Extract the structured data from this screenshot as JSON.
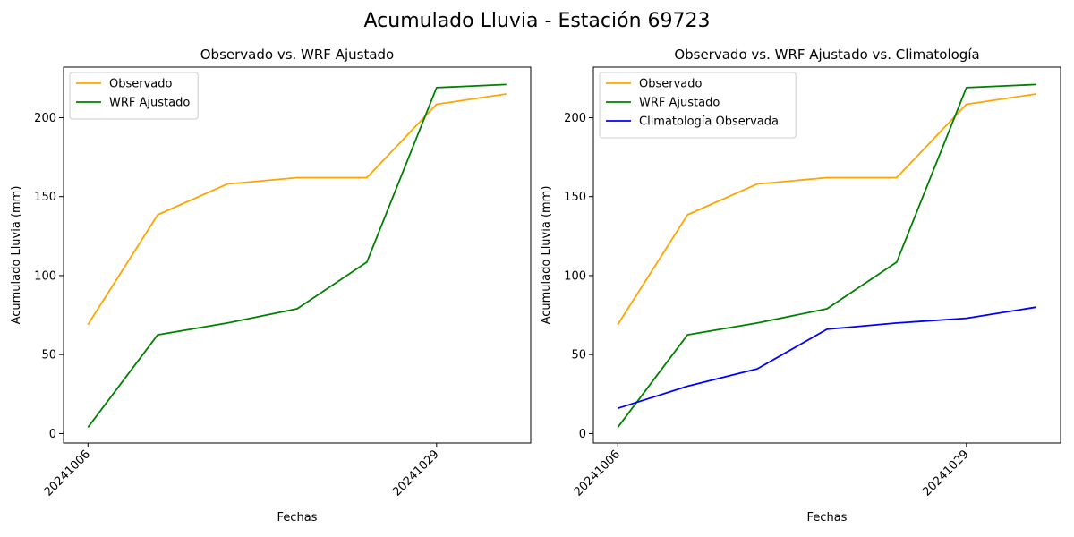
{
  "figure": {
    "title": "Acumulado Lluvia - Estación 69723"
  },
  "chart_data": [
    {
      "type": "line",
      "title": "Observado vs. WRF Ajustado",
      "xlabel": "Fechas",
      "ylabel": "Acumulado Lluvia (mm)",
      "x": [
        0,
        1,
        2,
        3,
        4,
        5,
        6
      ],
      "x_tick_positions": [
        0,
        5
      ],
      "x_tick_labels": [
        "20241006",
        "20241029"
      ],
      "xlim": [
        -0.35,
        6.35
      ],
      "ylim": [
        -6,
        232
      ],
      "y_ticks": [
        0,
        50,
        100,
        150,
        200
      ],
      "grid": false,
      "legend_position": "top-left",
      "series": [
        {
          "name": "Observado",
          "color": "#FFA500",
          "values": [
            69,
            138.5,
            158,
            162,
            162,
            208.5,
            215
          ]
        },
        {
          "name": "WRF Ajustado",
          "color": "#008000",
          "values": [
            4,
            62.5,
            70,
            79,
            108.5,
            219,
            221
          ]
        }
      ]
    },
    {
      "type": "line",
      "title": "Observado vs. WRF Ajustado vs. Climatología",
      "xlabel": "Fechas",
      "ylabel": "Acumulado Lluvia (mm)",
      "x": [
        0,
        1,
        2,
        3,
        4,
        5,
        6
      ],
      "x_tick_positions": [
        0,
        5
      ],
      "x_tick_labels": [
        "20241006",
        "20241029"
      ],
      "xlim": [
        -0.35,
        6.35
      ],
      "ylim": [
        -6,
        232
      ],
      "y_ticks": [
        0,
        50,
        100,
        150,
        200
      ],
      "grid": false,
      "legend_position": "top-left",
      "series": [
        {
          "name": "Observado",
          "color": "#FFA500",
          "values": [
            69,
            138.5,
            158,
            162,
            162,
            208.5,
            215
          ]
        },
        {
          "name": "WRF Ajustado",
          "color": "#008000",
          "values": [
            4,
            62.5,
            70,
            79,
            108.5,
            219,
            221
          ]
        },
        {
          "name": "Climatología Observada",
          "color": "#0000FF",
          "values": [
            16,
            30,
            41,
            66,
            70,
            73,
            80
          ]
        }
      ]
    }
  ]
}
